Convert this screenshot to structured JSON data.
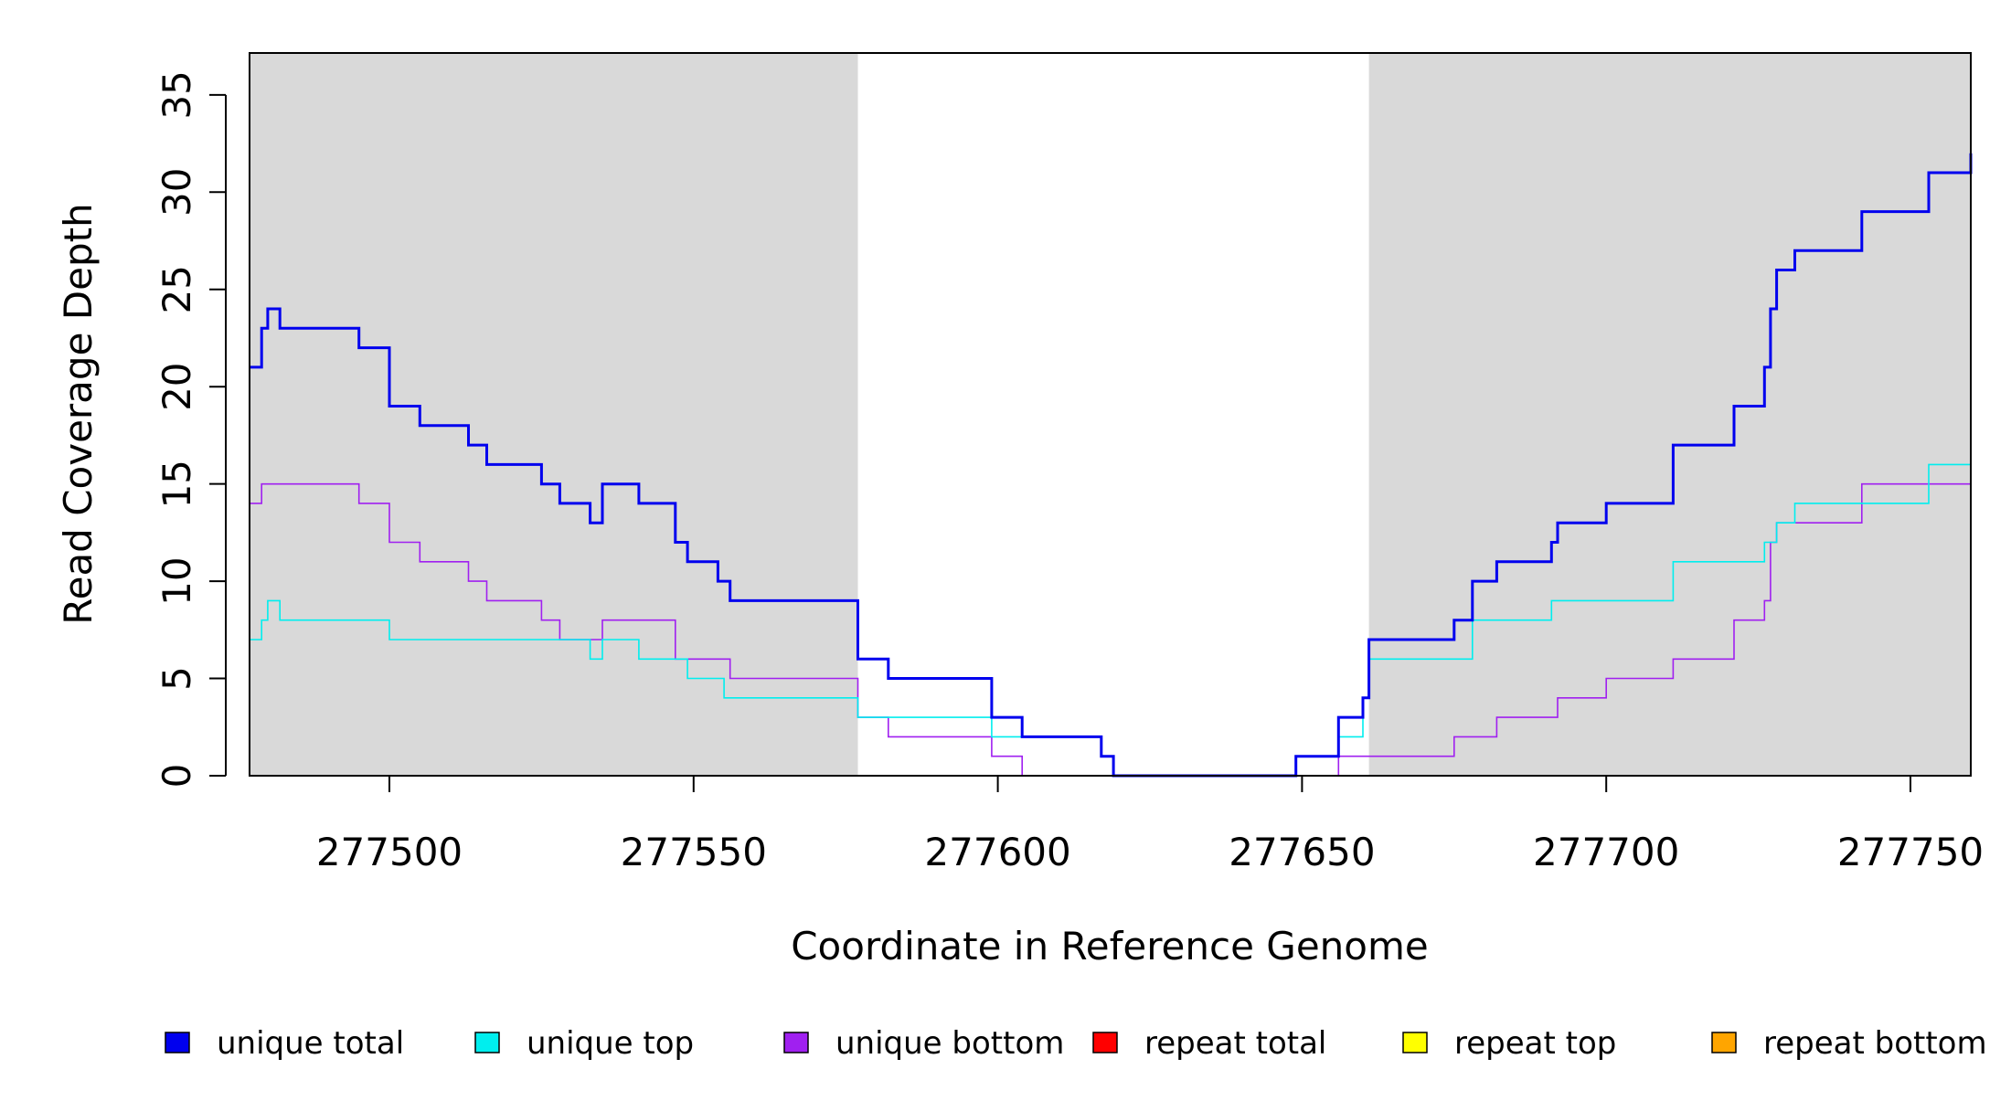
{
  "chart_data": {
    "type": "line",
    "xlabel": "Coordinate in Reference Genome",
    "ylabel": "Read Coverage Depth",
    "xlim": [
      277477,
      277760
    ],
    "ylim": [
      0,
      37
    ],
    "x_ticks": [
      277500,
      277550,
      277600,
      277650,
      277700,
      277750
    ],
    "x_tick_labels": [
      "277500",
      "277550",
      "277600",
      "277650",
      "277700",
      "277750"
    ],
    "y_ticks": [
      0,
      5,
      10,
      15,
      20,
      25,
      30,
      35
    ],
    "y_tick_labels": [
      "0",
      "5",
      "10",
      "15",
      "20",
      "25",
      "30",
      "35"
    ],
    "shaded_regions": [
      {
        "x_start": 277477,
        "x_end": 277577
      },
      {
        "x_start": 277661,
        "x_end": 277760
      }
    ],
    "shade_color": "#d9d9d9",
    "grid": false,
    "legend_position": "bottom",
    "series": [
      {
        "name": "unique total",
        "color": "#0000ee",
        "stroke": "thick",
        "points": [
          [
            277477,
            21
          ],
          [
            277479,
            23
          ],
          [
            277480,
            24
          ],
          [
            277482,
            23
          ],
          [
            277495,
            22
          ],
          [
            277500,
            19
          ],
          [
            277505,
            18
          ],
          [
            277513,
            17
          ],
          [
            277516,
            16
          ],
          [
            277525,
            15
          ],
          [
            277528,
            14
          ],
          [
            277533,
            13
          ],
          [
            277535,
            15
          ],
          [
            277541,
            14
          ],
          [
            277547,
            12
          ],
          [
            277549,
            11
          ],
          [
            277554,
            10
          ],
          [
            277556,
            9
          ],
          [
            277577,
            6
          ],
          [
            277582,
            5
          ],
          [
            277599,
            3
          ],
          [
            277604,
            2
          ],
          [
            277617,
            1
          ],
          [
            277619,
            0
          ],
          [
            277649,
            1
          ],
          [
            277656,
            3
          ],
          [
            277660,
            4
          ],
          [
            277661,
            7
          ],
          [
            277675,
            8
          ],
          [
            277678,
            10
          ],
          [
            277682,
            11
          ],
          [
            277691,
            12
          ],
          [
            277692,
            13
          ],
          [
            277700,
            14
          ],
          [
            277711,
            17
          ],
          [
            277721,
            19
          ],
          [
            277726,
            21
          ],
          [
            277727,
            24
          ],
          [
            277728,
            26
          ],
          [
            277731,
            27
          ],
          [
            277742,
            29
          ],
          [
            277753,
            31
          ],
          [
            277760,
            32
          ]
        ]
      },
      {
        "name": "unique top",
        "color": "#00eeee",
        "stroke": "thin",
        "points": [
          [
            277477,
            7
          ],
          [
            277479,
            8
          ],
          [
            277480,
            9
          ],
          [
            277482,
            8
          ],
          [
            277500,
            7
          ],
          [
            277533,
            6
          ],
          [
            277535,
            7
          ],
          [
            277541,
            6
          ],
          [
            277549,
            5
          ],
          [
            277555,
            4
          ],
          [
            277577,
            3
          ],
          [
            277599,
            2
          ],
          [
            277617,
            1
          ],
          [
            277619,
            0
          ],
          [
            277649,
            1
          ],
          [
            277656,
            2
          ],
          [
            277660,
            4
          ],
          [
            277661,
            6
          ],
          [
            277678,
            8
          ],
          [
            277691,
            9
          ],
          [
            277711,
            11
          ],
          [
            277726,
            12
          ],
          [
            277728,
            13
          ],
          [
            277731,
            14
          ],
          [
            277753,
            16
          ],
          [
            277760,
            17
          ]
        ]
      },
      {
        "name": "unique bottom",
        "color": "#a020f0",
        "stroke": "thin",
        "points": [
          [
            277477,
            14
          ],
          [
            277479,
            15
          ],
          [
            277495,
            14
          ],
          [
            277500,
            12
          ],
          [
            277505,
            11
          ],
          [
            277513,
            10
          ],
          [
            277516,
            9
          ],
          [
            277525,
            8
          ],
          [
            277528,
            7
          ],
          [
            277535,
            8
          ],
          [
            277547,
            6
          ],
          [
            277556,
            5
          ],
          [
            277577,
            3
          ],
          [
            277582,
            2
          ],
          [
            277599,
            1
          ],
          [
            277604,
            0
          ],
          [
            277656,
            1
          ],
          [
            277675,
            2
          ],
          [
            277682,
            3
          ],
          [
            277692,
            4
          ],
          [
            277700,
            5
          ],
          [
            277711,
            6
          ],
          [
            277721,
            8
          ],
          [
            277726,
            9
          ],
          [
            277727,
            12
          ],
          [
            277728,
            13
          ],
          [
            277742,
            15
          ],
          [
            277760,
            15
          ]
        ]
      },
      {
        "name": "repeat total",
        "color": "#ff0000",
        "stroke": "thin",
        "points": [
          [
            277477,
            0
          ],
          [
            277760,
            0
          ]
        ]
      },
      {
        "name": "repeat top",
        "color": "#ffff00",
        "stroke": "thin",
        "points": [
          [
            277477,
            0
          ],
          [
            277760,
            0
          ]
        ]
      },
      {
        "name": "repeat bottom",
        "color": "#ffa500",
        "stroke": "thin",
        "points": [
          [
            277477,
            0
          ],
          [
            277760,
            0
          ]
        ]
      }
    ]
  }
}
